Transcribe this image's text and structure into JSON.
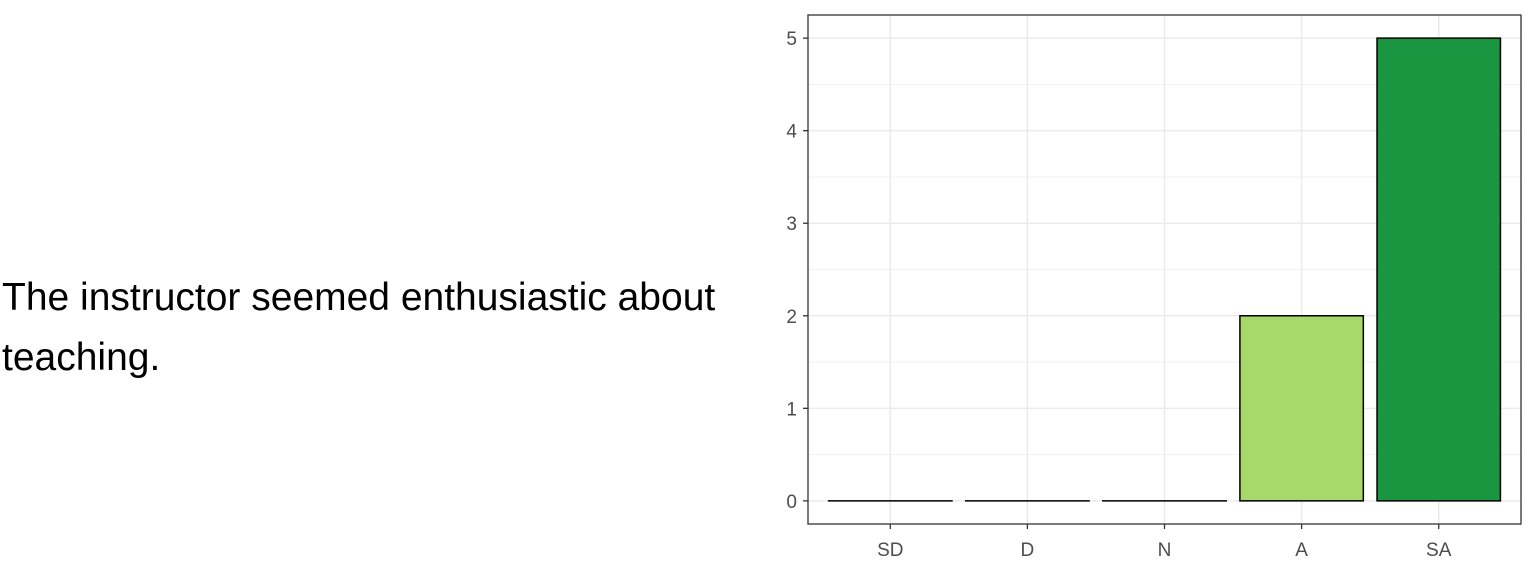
{
  "question": {
    "text": "The instructor seemed enthusiastic about\nteaching."
  },
  "chart_data": {
    "type": "bar",
    "categories": [
      "SD",
      "D",
      "N",
      "A",
      "SA"
    ],
    "values": [
      0,
      0,
      0,
      2,
      5
    ],
    "colors": [
      "#edf8e9",
      "#c7e9c0",
      "#a1d99b",
      "#a6d96a",
      "#1a9641"
    ],
    "title": "",
    "xlabel": "",
    "ylabel": "",
    "ylim": [
      -0.25,
      5.25
    ],
    "yticks": [
      0,
      1,
      2,
      3,
      4,
      5
    ],
    "grid": true,
    "legend": "none"
  }
}
